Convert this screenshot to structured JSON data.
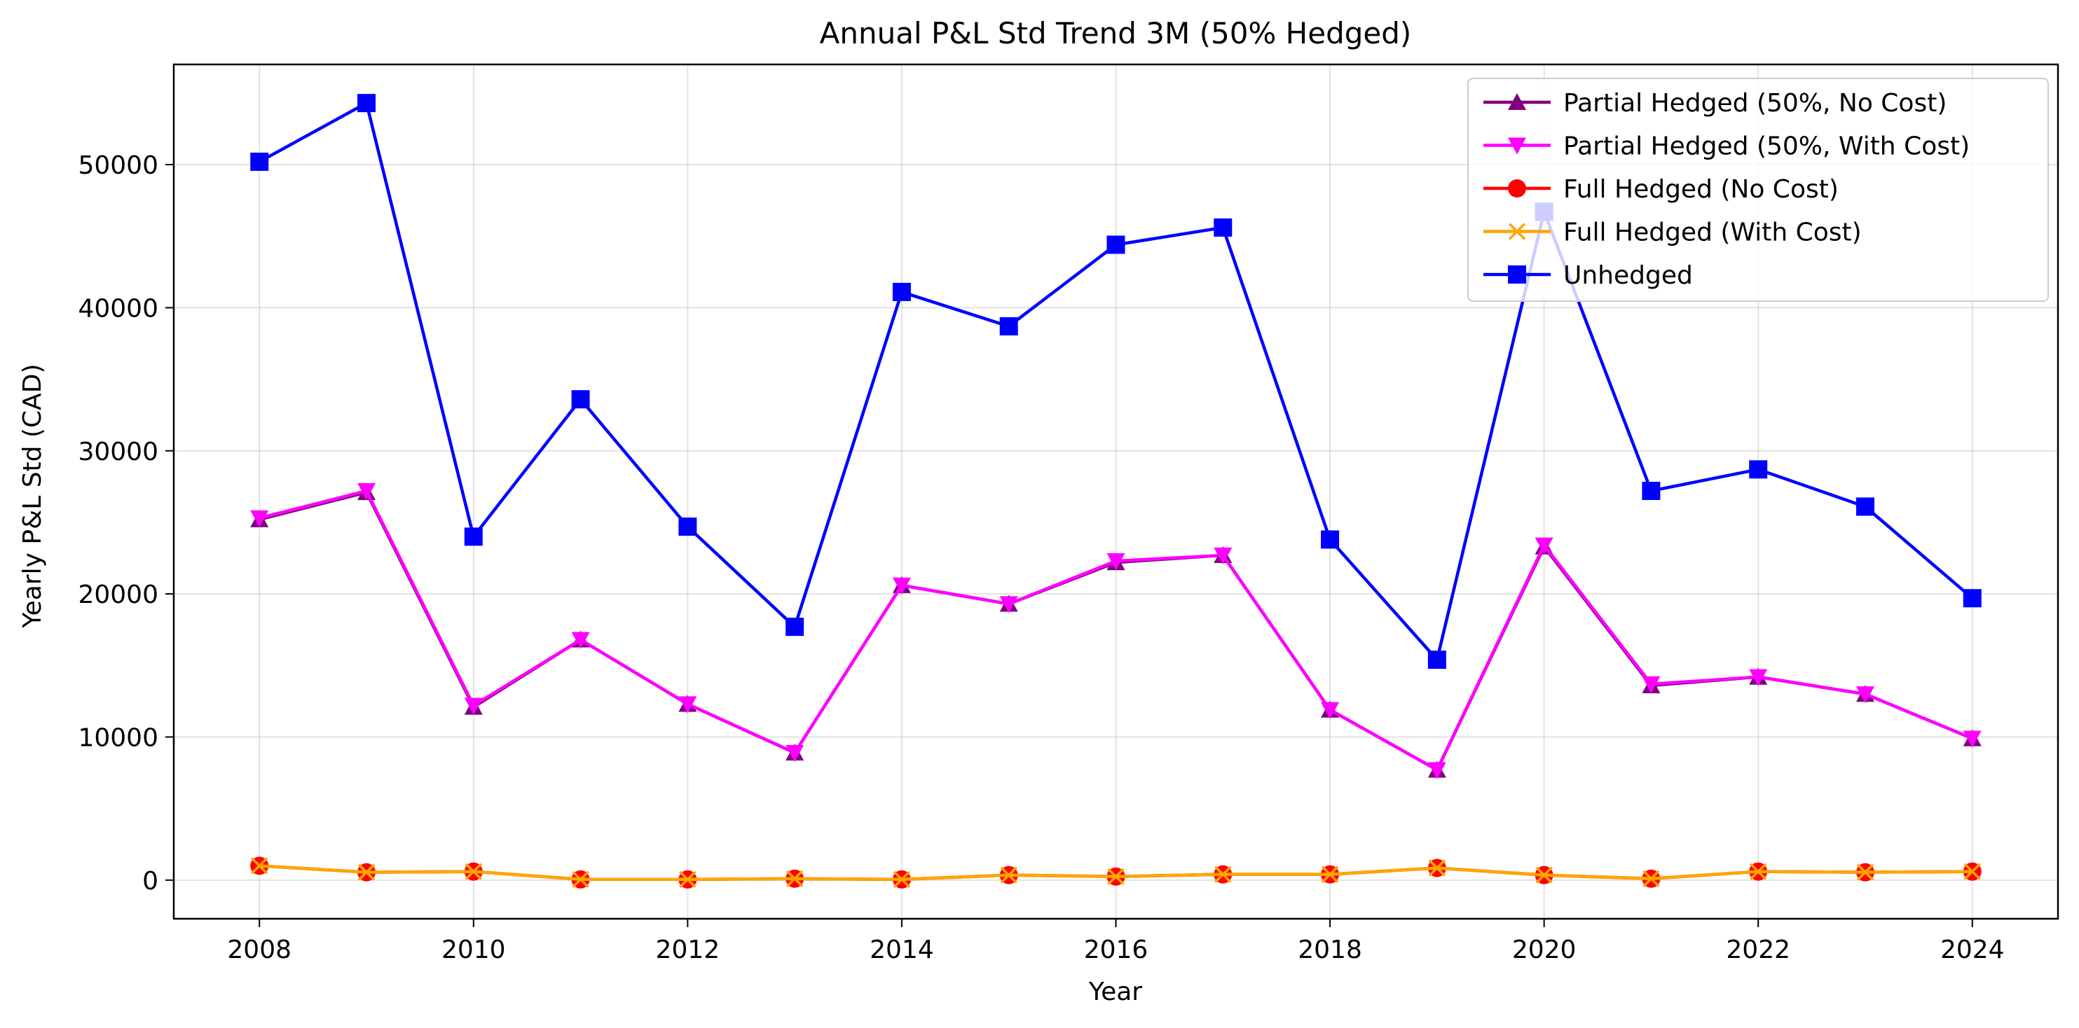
{
  "chart_data": {
    "type": "line",
    "title": "Annual P&L Std Trend 3M (50% Hedged)",
    "xlabel": "Year",
    "ylabel": "Yearly P&L Std (CAD)",
    "x": [
      2008,
      2009,
      2010,
      2011,
      2012,
      2013,
      2014,
      2015,
      2016,
      2017,
      2018,
      2019,
      2020,
      2021,
      2022,
      2023,
      2024
    ],
    "xlim": [
      2007.2,
      2024.8
    ],
    "ylim": [
      -2700,
      57000
    ],
    "xticks": [
      "2008",
      "2010",
      "2012",
      "2014",
      "2016",
      "2018",
      "2020",
      "2022",
      "2024"
    ],
    "yticks": [
      "0",
      "10000",
      "20000",
      "30000",
      "40000",
      "50000"
    ],
    "grid": true,
    "legend_position": "top-right",
    "series": [
      {
        "name": "Partial Hedged (50%, No Cost)",
        "color": "#800080",
        "marker": "triangle-up",
        "values": [
          25200,
          27100,
          12100,
          16800,
          12300,
          8900,
          20600,
          19300,
          22200,
          22700,
          11900,
          7700,
          23300,
          13600,
          14200,
          13000,
          9900
        ]
      },
      {
        "name": "Partial Hedged (50%, With Cost)",
        "color": "#ff00ff",
        "marker": "triangle-down",
        "values": [
          25300,
          27200,
          12200,
          16800,
          12300,
          8900,
          20600,
          19300,
          22300,
          22700,
          11900,
          7700,
          23400,
          13700,
          14200,
          13000,
          9900
        ]
      },
      {
        "name": "Full Hedged (No Cost)",
        "color": "#ff0000",
        "marker": "circle",
        "values": [
          1000,
          550,
          600,
          50,
          50,
          100,
          50,
          350,
          250,
          400,
          400,
          850,
          350,
          100,
          600,
          550,
          600
        ]
      },
      {
        "name": "Full Hedged (With Cost)",
        "color": "#ffa500",
        "marker": "x",
        "values": [
          1000,
          550,
          600,
          50,
          50,
          100,
          50,
          350,
          250,
          400,
          400,
          850,
          350,
          100,
          600,
          550,
          600
        ]
      },
      {
        "name": "Unhedged",
        "color": "#0000ff",
        "marker": "square",
        "values": [
          50200,
          54300,
          24000,
          33600,
          24700,
          17700,
          41100,
          38700,
          44400,
          45600,
          23800,
          15400,
          46700,
          27200,
          28700,
          26100,
          19700
        ]
      }
    ]
  }
}
